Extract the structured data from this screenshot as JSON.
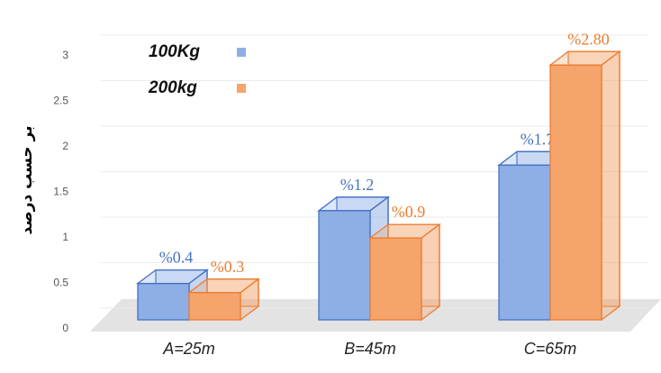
{
  "chart_data": {
    "type": "bar3d",
    "y_label": "بر حسب درصد",
    "categories": [
      "A=25m",
      "B=45m",
      "C=65m"
    ],
    "series": [
      {
        "name": "100Kg",
        "color": "#4472c4",
        "fill": "#8eaee6",
        "values": [
          0.4,
          1.2,
          1.7
        ],
        "value_labels": [
          "%0.4",
          "%1.2",
          "%1.7"
        ]
      },
      {
        "name": "200kg",
        "color": "#ed7d31",
        "fill": "#f5a46c",
        "values": [
          0.3,
          0.9,
          2.8
        ],
        "value_labels": [
          "%0.3",
          "%0.9",
          "%2.80"
        ]
      }
    ],
    "ylim": [
      0,
      3.3
    ],
    "yticks": [
      0,
      0.5,
      1,
      1.5,
      2,
      2.5,
      3
    ],
    "grid": true,
    "legend": "top-left"
  }
}
